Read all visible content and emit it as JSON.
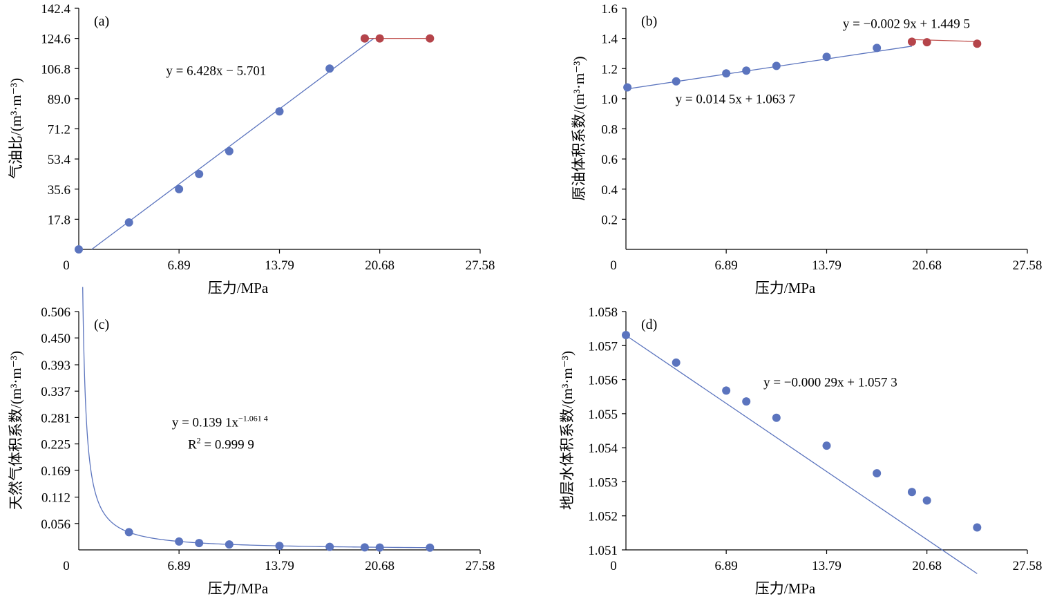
{
  "colors": {
    "blue": "#5b74be",
    "red": "#b5444a",
    "line_blue": "#5b74be",
    "line_red": "#c0504d",
    "axis": "#000000"
  },
  "chart_data": [
    {
      "id": "a",
      "type": "scatter",
      "panel_label": "(a)",
      "xlabel": "压力/MPa",
      "ylabel": "气油比/(m³·m⁻³)",
      "xlim": [
        0,
        27.58
      ],
      "ylim": [
        0,
        142.4
      ],
      "xticks": [
        0,
        6.89,
        13.79,
        20.68,
        27.58
      ],
      "xtick_labels": [
        "0",
        "6.89",
        "13.79",
        "20.68",
        "27.58"
      ],
      "yticks": [
        17.8,
        35.6,
        53.4,
        71.2,
        89.0,
        106.8,
        124.6,
        142.4
      ],
      "ytick_labels": [
        "17.8",
        "35.6",
        "53.4",
        "71.2",
        "89.0",
        "106.8",
        "124.6",
        "142.4"
      ],
      "series": [
        {
          "color": "blue",
          "x": [
            0,
            3.45,
            6.89,
            8.27,
            10.34,
            13.79,
            17.24,
            19.65
          ],
          "y": [
            0,
            15.9,
            35.6,
            44.5,
            58.0,
            81.5,
            106.8,
            124.6
          ]
        },
        {
          "color": "red",
          "x": [
            19.65,
            20.68,
            24.13
          ],
          "y": [
            124.6,
            124.6,
            124.6
          ]
        }
      ],
      "fits": [
        {
          "color": "line_blue",
          "kind": "linear",
          "a": 6.428,
          "b": -5.701,
          "x_from": 0.887,
          "x_to": 20.26
        }
      ],
      "segments": [
        {
          "color": "line_red",
          "x": [
            19.65,
            24.13
          ],
          "y": [
            124.6,
            124.6
          ]
        }
      ],
      "annotations": [
        {
          "text": "y = 6.428x − 5.701",
          "x": 6.0,
          "y": 103.0
        }
      ]
    },
    {
      "id": "b",
      "type": "scatter",
      "panel_label": "(b)",
      "xlabel": "压力/MPa",
      "ylabel": "原油体积系数/(m³·m⁻³)",
      "xlim": [
        0,
        27.58
      ],
      "ylim": [
        0,
        1.6
      ],
      "xticks": [
        0,
        6.89,
        13.79,
        20.68,
        27.58
      ],
      "xtick_labels": [
        "0",
        "6.89",
        "13.79",
        "20.68",
        "27.58"
      ],
      "yticks": [
        0.2,
        0.4,
        0.6,
        0.8,
        1.0,
        1.2,
        1.4,
        1.6
      ],
      "ytick_labels": [
        "0.2",
        "0.4",
        "0.6",
        "0.8",
        "1.0",
        "1.2",
        "1.4",
        "1.6"
      ],
      "series": [
        {
          "color": "blue",
          "x": [
            0.1,
            3.45,
            6.89,
            8.27,
            10.34,
            13.79,
            17.24
          ],
          "y": [
            1.075,
            1.115,
            1.168,
            1.186,
            1.218,
            1.278,
            1.337
          ]
        },
        {
          "color": "red",
          "x": [
            19.65,
            20.68,
            24.13
          ],
          "y": [
            1.378,
            1.375,
            1.365
          ]
        }
      ],
      "fits": [
        {
          "color": "line_blue",
          "kind": "linear",
          "a": 0.0145,
          "b": 1.0637,
          "x_from": 0,
          "x_to": 19.65
        },
        {
          "color": "line_red",
          "kind": "linear",
          "a": -0.0029,
          "b": 1.4495,
          "x_from": 19.65,
          "x_to": 24.13
        }
      ],
      "annotations": [
        {
          "text": "y = −0.002 9x + 1.449 5",
          "x": 14.9,
          "y": 1.47
        },
        {
          "text": "y = 0.014 5x + 1.063 7",
          "x": 3.4,
          "y": 0.97
        }
      ]
    },
    {
      "id": "c",
      "type": "scatter",
      "panel_label": "(c)",
      "xlabel": "压力/MPa",
      "ylabel": "天然气体积系数/(m³·m⁻³)",
      "xlim": [
        0,
        27.58
      ],
      "ylim": [
        0,
        0.506
      ],
      "xticks": [
        0,
        6.89,
        13.79,
        20.68,
        27.58
      ],
      "xtick_labels": [
        "0",
        "6.89",
        "13.79",
        "20.68",
        "27.58"
      ],
      "yticks": [
        0.056,
        0.112,
        0.169,
        0.225,
        0.281,
        0.337,
        0.393,
        0.45,
        0.506
      ],
      "ytick_labels": [
        "0.056",
        "0.112",
        "0.169",
        "0.225",
        "0.281",
        "0.337",
        "0.393",
        "0.450",
        "0.506"
      ],
      "series": [
        {
          "color": "blue",
          "x": [
            3.45,
            6.89,
            8.27,
            10.34,
            13.79,
            17.24,
            19.65,
            20.68,
            24.13
          ],
          "y": [
            0.0375,
            0.0177,
            0.0145,
            0.0115,
            0.0085,
            0.0064,
            0.0053,
            0.005,
            0.0048
          ]
        }
      ],
      "fits": [
        {
          "color": "line_blue",
          "kind": "power",
          "a": 0.1391,
          "b": -1.0614,
          "x_from": 0.27,
          "x_to": 24.13
        }
      ],
      "annotations": [
        {
          "text": "y = 0.139 1x",
          "sup": "−1.061 4",
          "x": 6.4,
          "y": 0.262
        },
        {
          "text": "R",
          "sup": "2",
          "after": " = 0.999 9",
          "x": 7.5,
          "y": 0.215
        }
      ]
    },
    {
      "id": "d",
      "type": "scatter",
      "panel_label": "(d)",
      "xlabel": "压力/MPa",
      "ylabel": "地层水体积系数/(m³·m⁻³)",
      "xlim": [
        0,
        27.58
      ],
      "ylim": [
        1.051,
        1.058
      ],
      "xticks": [
        0,
        6.89,
        13.79,
        20.68,
        27.58
      ],
      "xtick_labels": [
        "0",
        "6.89",
        "13.79",
        "20.68",
        "27.58"
      ],
      "yticks": [
        1.051,
        1.052,
        1.053,
        1.054,
        1.055,
        1.056,
        1.057,
        1.058
      ],
      "ytick_labels": [
        "1.051",
        "1.052",
        "1.053",
        "1.054",
        "1.055",
        "1.056",
        "1.057",
        "1.058"
      ],
      "series": [
        {
          "color": "blue",
          "x": [
            0,
            3.45,
            6.89,
            8.27,
            10.34,
            13.79,
            17.24,
            19.65,
            20.68,
            24.13
          ],
          "y": [
            1.05731,
            1.0565,
            1.05568,
            1.05536,
            1.05488,
            1.05406,
            1.05325,
            1.0527,
            1.05245,
            1.05166
          ]
        }
      ],
      "fits": [
        {
          "color": "line_blue",
          "kind": "linear",
          "a": -0.00029,
          "b": 1.0573,
          "x_from": 0,
          "x_to": 24.13
        }
      ],
      "annotations": [
        {
          "text": "y = −0.000 29x + 1.057 3",
          "x": 9.45,
          "y": 1.0558
        }
      ]
    }
  ]
}
